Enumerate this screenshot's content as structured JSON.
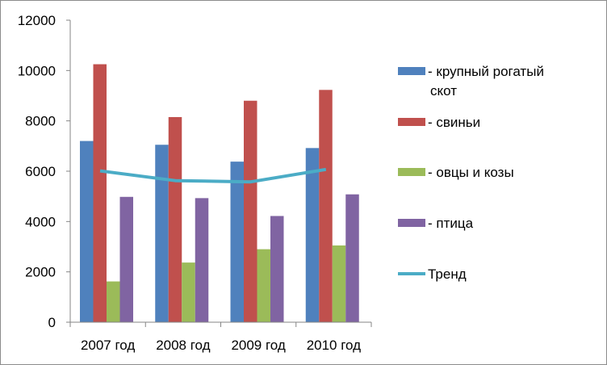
{
  "chart_data": {
    "type": "bar",
    "title": "",
    "xlabel": "",
    "ylabel": "",
    "ylim": [
      0,
      12000
    ],
    "yticks": [
      "0",
      "2000",
      "4000",
      "6000",
      "8000",
      "10000",
      "12000"
    ],
    "grid": false,
    "legend_position": "right",
    "categories": [
      "2007 год",
      "2008 год",
      "2009 год",
      "2010 год"
    ],
    "series": [
      {
        "name": "- крупный рогатый скот",
        "color": "#4F81BD",
        "values": [
          7200,
          7050,
          6380,
          6920
        ]
      },
      {
        "name": "- свиньи",
        "color": "#C0504D",
        "values": [
          10250,
          8150,
          8800,
          9230
        ]
      },
      {
        "name": "- овцы и козы",
        "color": "#9BBB59",
        "values": [
          1620,
          2370,
          2900,
          3050
        ]
      },
      {
        "name": "- птица",
        "color": "#8064A2",
        "values": [
          4980,
          4930,
          4220,
          5080
        ]
      }
    ],
    "trend": {
      "name": "Тренд",
      "color": "#4BACC6",
      "values": [
        6012,
        5625,
        5575,
        6070
      ]
    }
  }
}
